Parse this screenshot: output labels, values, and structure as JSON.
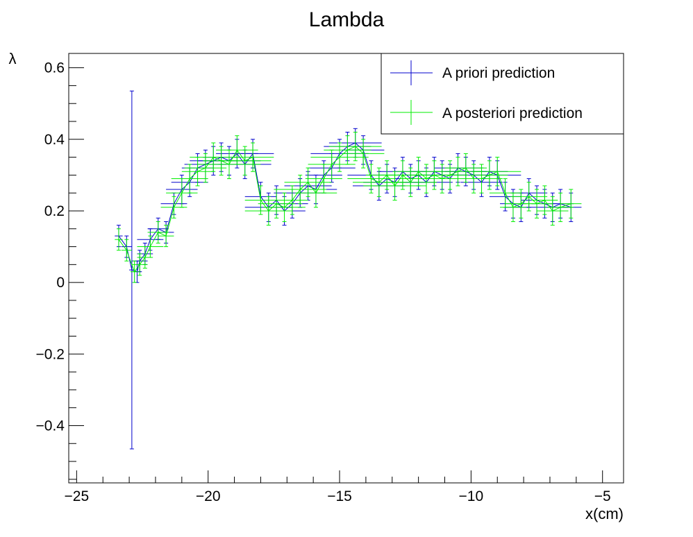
{
  "chart_data": {
    "type": "scatter",
    "title": "Lambda",
    "xlabel": "x(cm)",
    "ylabel": "λ",
    "xlim": [
      -25.3,
      -4.2
    ],
    "ylim": [
      -0.56,
      0.64
    ],
    "x_ticks": [
      -25,
      -20,
      -15,
      -10,
      -5
    ],
    "x_tick_labels": [
      "−25",
      "−20",
      "−15",
      "−10",
      "−5"
    ],
    "y_ticks": [
      -0.4,
      -0.2,
      0,
      0.2,
      0.4,
      0.6
    ],
    "y_tick_labels": [
      "−0.4",
      "−0.2",
      "0",
      "0.2",
      "0.4",
      "0.6"
    ],
    "grid": false,
    "legend_position": "top-right",
    "series": [
      {
        "name": "A priori prediction",
        "color": "#0000cc",
        "x": [
          -23.4,
          -23.1,
          -22.9,
          -22.7,
          -22.6,
          -22.4,
          -22.2,
          -21.9,
          -21.6,
          -21.3,
          -21.0,
          -20.7,
          -20.4,
          -20.1,
          -19.8,
          -19.5,
          -19.2,
          -18.9,
          -18.6,
          -18.3,
          -18.0,
          -17.7,
          -17.4,
          -17.1,
          -16.8,
          -16.5,
          -16.2,
          -15.9,
          -15.6,
          -15.3,
          -15.0,
          -14.7,
          -14.4,
          -14.1,
          -13.8,
          -13.5,
          -13.2,
          -12.9,
          -12.6,
          -12.3,
          -12.0,
          -11.7,
          -11.4,
          -11.1,
          -10.8,
          -10.5,
          -10.2,
          -9.9,
          -9.6,
          -9.3,
          -9.0,
          -8.7,
          -8.4,
          -8.1,
          -7.8,
          -7.5,
          -7.2,
          -6.9,
          -6.6,
          -6.2
        ],
        "y": [
          0.13,
          0.1,
          0.035,
          0.03,
          0.06,
          0.08,
          0.12,
          0.15,
          0.14,
          0.22,
          0.26,
          0.28,
          0.32,
          0.33,
          0.34,
          0.35,
          0.34,
          0.36,
          0.33,
          0.36,
          0.24,
          0.21,
          0.23,
          0.2,
          0.22,
          0.25,
          0.27,
          0.26,
          0.3,
          0.32,
          0.36,
          0.38,
          0.39,
          0.37,
          0.3,
          0.27,
          0.29,
          0.28,
          0.31,
          0.29,
          0.3,
          0.28,
          0.31,
          0.3,
          0.29,
          0.32,
          0.31,
          0.3,
          0.28,
          0.31,
          0.3,
          0.24,
          0.22,
          0.21,
          0.25,
          0.23,
          0.22,
          0.21,
          0.22,
          0.21
        ],
        "xerr": [
          0.15,
          0.2,
          0.1,
          0.15,
          0.3,
          0.3,
          0.5,
          0.4,
          0.3,
          0.5,
          0.6,
          0.7,
          0.6,
          0.8,
          0.9,
          0.7,
          1.2,
          0.8,
          1.0,
          0.8,
          0.6,
          0.9,
          0.7,
          0.8,
          0.6,
          1.0,
          0.9,
          0.8,
          0.7,
          0.9,
          1.1,
          0.9,
          1.0,
          0.8,
          0.9,
          1.0,
          0.8,
          1.2,
          0.9,
          1.0,
          0.8,
          1.0,
          0.9,
          1.0,
          0.7,
          0.9,
          0.8,
          0.9,
          0.8,
          0.7,
          0.9,
          0.6,
          0.5,
          0.6,
          0.7,
          0.6,
          0.5,
          0.6,
          0.5,
          0.4
        ],
        "yerr": [
          0.03,
          0.03,
          0.5,
          0.03,
          0.03,
          0.03,
          0.03,
          0.03,
          0.03,
          0.03,
          0.04,
          0.04,
          0.04,
          0.04,
          0.04,
          0.04,
          0.04,
          0.04,
          0.04,
          0.04,
          0.04,
          0.04,
          0.04,
          0.04,
          0.04,
          0.04,
          0.04,
          0.04,
          0.04,
          0.04,
          0.04,
          0.04,
          0.04,
          0.04,
          0.04,
          0.04,
          0.04,
          0.04,
          0.04,
          0.04,
          0.04,
          0.04,
          0.04,
          0.04,
          0.04,
          0.04,
          0.04,
          0.04,
          0.04,
          0.04,
          0.04,
          0.04,
          0.04,
          0.04,
          0.04,
          0.04,
          0.04,
          0.04,
          0.04,
          0.04
        ]
      },
      {
        "name": "A posteriori prediction",
        "color": "#00ee00",
        "x": [
          -23.4,
          -23.1,
          -22.8,
          -22.6,
          -22.4,
          -22.2,
          -21.9,
          -21.6,
          -21.3,
          -21.0,
          -20.7,
          -20.4,
          -20.1,
          -19.8,
          -19.5,
          -19.2,
          -18.9,
          -18.6,
          -18.3,
          -18.0,
          -17.7,
          -17.4,
          -17.1,
          -16.8,
          -16.5,
          -16.2,
          -15.9,
          -15.6,
          -15.3,
          -15.0,
          -14.7,
          -14.4,
          -14.1,
          -13.8,
          -13.5,
          -13.2,
          -12.9,
          -12.6,
          -12.3,
          -12.0,
          -11.7,
          -11.4,
          -11.1,
          -10.8,
          -10.5,
          -10.2,
          -9.9,
          -9.6,
          -9.3,
          -9.0,
          -8.7,
          -8.4,
          -8.1,
          -7.8,
          -7.5,
          -7.2,
          -6.9,
          -6.6,
          -6.2
        ],
        "y": [
          0.12,
          0.09,
          0.03,
          0.05,
          0.07,
          0.1,
          0.14,
          0.13,
          0.21,
          0.25,
          0.29,
          0.31,
          0.32,
          0.35,
          0.34,
          0.33,
          0.37,
          0.34,
          0.35,
          0.23,
          0.2,
          0.22,
          0.21,
          0.23,
          0.26,
          0.28,
          0.25,
          0.29,
          0.33,
          0.35,
          0.37,
          0.38,
          0.36,
          0.29,
          0.28,
          0.3,
          0.27,
          0.3,
          0.28,
          0.31,
          0.29,
          0.3,
          0.29,
          0.3,
          0.31,
          0.32,
          0.29,
          0.29,
          0.3,
          0.31,
          0.25,
          0.21,
          0.22,
          0.24,
          0.22,
          0.23,
          0.2,
          0.21,
          0.22
        ],
        "xerr": [
          0.15,
          0.2,
          0.15,
          0.3,
          0.3,
          0.5,
          0.4,
          0.3,
          0.5,
          0.6,
          0.7,
          0.6,
          0.8,
          0.9,
          0.7,
          1.2,
          0.8,
          1.0,
          0.8,
          0.6,
          0.9,
          0.7,
          0.8,
          0.6,
          1.0,
          0.9,
          0.8,
          0.7,
          0.9,
          1.1,
          0.9,
          1.0,
          0.8,
          0.9,
          1.0,
          0.8,
          1.2,
          0.9,
          1.0,
          0.8,
          1.0,
          0.9,
          1.0,
          0.7,
          0.9,
          0.8,
          0.9,
          0.8,
          0.7,
          0.9,
          0.6,
          0.5,
          0.6,
          0.7,
          0.6,
          0.5,
          0.6,
          0.5,
          0.4
        ],
        "yerr": [
          0.03,
          0.03,
          0.03,
          0.03,
          0.03,
          0.03,
          0.03,
          0.03,
          0.03,
          0.04,
          0.04,
          0.04,
          0.04,
          0.04,
          0.04,
          0.04,
          0.04,
          0.04,
          0.04,
          0.04,
          0.04,
          0.04,
          0.04,
          0.04,
          0.04,
          0.04,
          0.04,
          0.04,
          0.04,
          0.04,
          0.04,
          0.04,
          0.04,
          0.04,
          0.04,
          0.04,
          0.04,
          0.04,
          0.04,
          0.04,
          0.04,
          0.04,
          0.04,
          0.04,
          0.04,
          0.04,
          0.04,
          0.04,
          0.04,
          0.04,
          0.04,
          0.04,
          0.04,
          0.04,
          0.04,
          0.04,
          0.04,
          0.04,
          0.04
        ]
      }
    ]
  }
}
